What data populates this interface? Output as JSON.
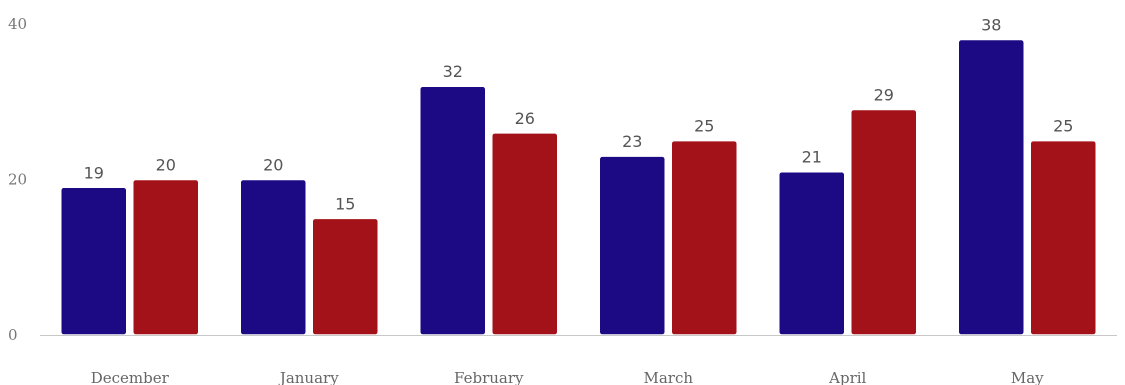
{
  "chart_data": {
    "type": "bar",
    "categories": [
      "December",
      "January",
      "February",
      "March",
      "April",
      "May"
    ],
    "series": [
      {
        "values": [
          19,
          20,
          32,
          23,
          21,
          38
        ],
        "color": "#1c0a85"
      },
      {
        "values": [
          20,
          15,
          26,
          25,
          29,
          25
        ],
        "color": "#a31218"
      }
    ],
    "ylim": [
      0,
      40
    ],
    "yticks": [
      0,
      20,
      40
    ],
    "grid": false,
    "data_labels": true
  }
}
